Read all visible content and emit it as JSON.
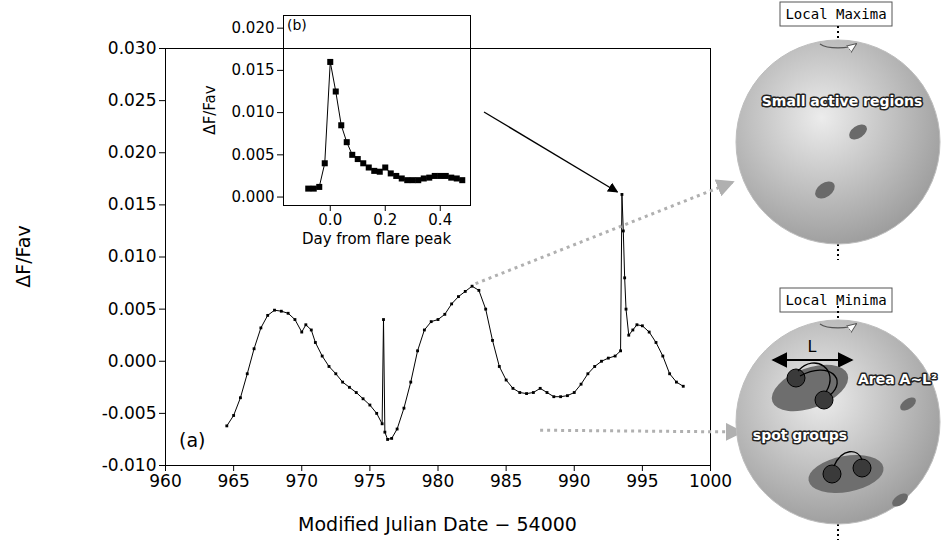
{
  "chart_data": [
    {
      "type": "line",
      "marker": "square",
      "line_style": "solid",
      "color": "#000000",
      "annotations": [
        "(a)"
      ],
      "x_label": "Modified Julian Date − 54000",
      "y_label": "ΔF/Fav",
      "xlim": [
        960,
        1000
      ],
      "xticks": [
        960,
        965,
        970,
        975,
        980,
        985,
        990,
        995,
        1000
      ],
      "ylim": [
        -0.01,
        0.03
      ],
      "yticks": [
        {
          "value": -0.01,
          "label": "-0.010"
        },
        {
          "value": -0.005,
          "label": "-0.005"
        },
        {
          "value": 0,
          "label": "0.000"
        },
        {
          "value": 0.005,
          "label": "0.005"
        },
        {
          "value": 0.01,
          "label": "0.010"
        },
        {
          "value": 0.015,
          "label": "0.015"
        },
        {
          "value": 0.02,
          "label": "0.020"
        },
        {
          "value": 0.025,
          "label": "0.025"
        },
        {
          "value": 0.03,
          "label": "0.030"
        }
      ],
      "x": [
        964.5,
        965.0,
        965.5,
        966.0,
        966.5,
        967.0,
        967.5,
        968.0,
        968.5,
        969.0,
        969.5,
        970.0,
        970.3,
        970.7,
        971.0,
        971.5,
        972.0,
        972.5,
        973.0,
        973.5,
        974.0,
        974.5,
        975.0,
        975.5,
        975.9,
        976.0,
        976.1,
        976.3,
        976.6,
        977.0,
        977.5,
        978.0,
        978.5,
        979.0,
        979.5,
        980.0,
        980.5,
        981.0,
        981.5,
        982.0,
        982.5,
        983.0,
        983.5,
        984.0,
        984.5,
        985.0,
        985.5,
        986.0,
        986.5,
        987.0,
        987.5,
        988.0,
        988.5,
        989.0,
        989.5,
        990.0,
        990.5,
        991.0,
        991.5,
        992.0,
        992.5,
        993.0,
        993.4,
        993.5,
        993.6,
        993.7,
        993.8,
        994.0,
        994.3,
        994.6,
        995.0,
        995.5,
        996.0,
        996.5,
        997.0,
        997.5,
        998.0
      ],
      "values": [
        -0.0062,
        -0.0052,
        -0.0035,
        -0.0012,
        0.0012,
        0.0032,
        0.0044,
        0.0049,
        0.0048,
        0.0046,
        0.004,
        0.0028,
        0.0035,
        0.003,
        0.0018,
        0.0005,
        -0.0005,
        -0.0012,
        -0.002,
        -0.0025,
        -0.003,
        -0.0036,
        -0.0042,
        -0.005,
        -0.006,
        0.004,
        -0.0068,
        -0.0075,
        -0.0074,
        -0.0065,
        -0.0045,
        -0.002,
        0.001,
        0.003,
        0.0038,
        0.004,
        0.0045,
        0.0055,
        0.0062,
        0.0067,
        0.0072,
        0.0068,
        0.005,
        0.002,
        -0.0005,
        -0.0018,
        -0.0026,
        -0.003,
        -0.0031,
        -0.003,
        -0.0026,
        -0.003,
        -0.0034,
        -0.0034,
        -0.0033,
        -0.003,
        -0.0022,
        -0.0012,
        -0.0005,
        0.0,
        0.0003,
        0.0005,
        0.001,
        0.016,
        0.0125,
        0.008,
        0.005,
        0.0025,
        0.003,
        0.0035,
        0.0034,
        0.0028,
        0.0018,
        0.0005,
        -0.0012,
        -0.002,
        -0.0024
      ]
    },
    {
      "type": "line",
      "marker": "square",
      "line_style": "solid",
      "color": "#000000",
      "annotations": [
        "(b)"
      ],
      "x_label": "Day from flare peak",
      "y_label": "ΔF/Fav",
      "xlim": [
        -0.17,
        0.51
      ],
      "xticks": [
        {
          "value": 0,
          "label": "0.0"
        },
        {
          "value": 0.2,
          "label": "0.2"
        },
        {
          "value": 0.4,
          "label": "0.4"
        }
      ],
      "ylim": [
        -0.001,
        0.0215
      ],
      "yticks": [
        {
          "value": 0,
          "label": "0.000"
        },
        {
          "value": 0.005,
          "label": "0.005"
        },
        {
          "value": 0.01,
          "label": "0.010"
        },
        {
          "value": 0.015,
          "label": "0.015"
        },
        {
          "value": 0.02,
          "label": "0.020"
        }
      ],
      "x": [
        -0.08,
        -0.06,
        -0.04,
        -0.02,
        0.0,
        0.02,
        0.04,
        0.06,
        0.08,
        0.1,
        0.12,
        0.14,
        0.16,
        0.18,
        0.2,
        0.22,
        0.24,
        0.26,
        0.28,
        0.3,
        0.32,
        0.34,
        0.36,
        0.38,
        0.4,
        0.42,
        0.44,
        0.46,
        0.48
      ],
      "values": [
        0.001,
        0.001,
        0.0012,
        0.004,
        0.016,
        0.0125,
        0.0085,
        0.0065,
        0.005,
        0.0045,
        0.004,
        0.0035,
        0.0031,
        0.003,
        0.0035,
        0.0028,
        0.0025,
        0.0022,
        0.002,
        0.002,
        0.002,
        0.0022,
        0.0023,
        0.0025,
        0.0025,
        0.0025,
        0.0023,
        0.0022,
        0.002
      ]
    }
  ],
  "diagram": {
    "panels": [
      {
        "title": "Local Maxima",
        "labels": [
          "Small active regions"
        ]
      },
      {
        "title": "Local Minima",
        "labels": [
          "L",
          "Area A~L²",
          "spot groups"
        ]
      }
    ]
  }
}
